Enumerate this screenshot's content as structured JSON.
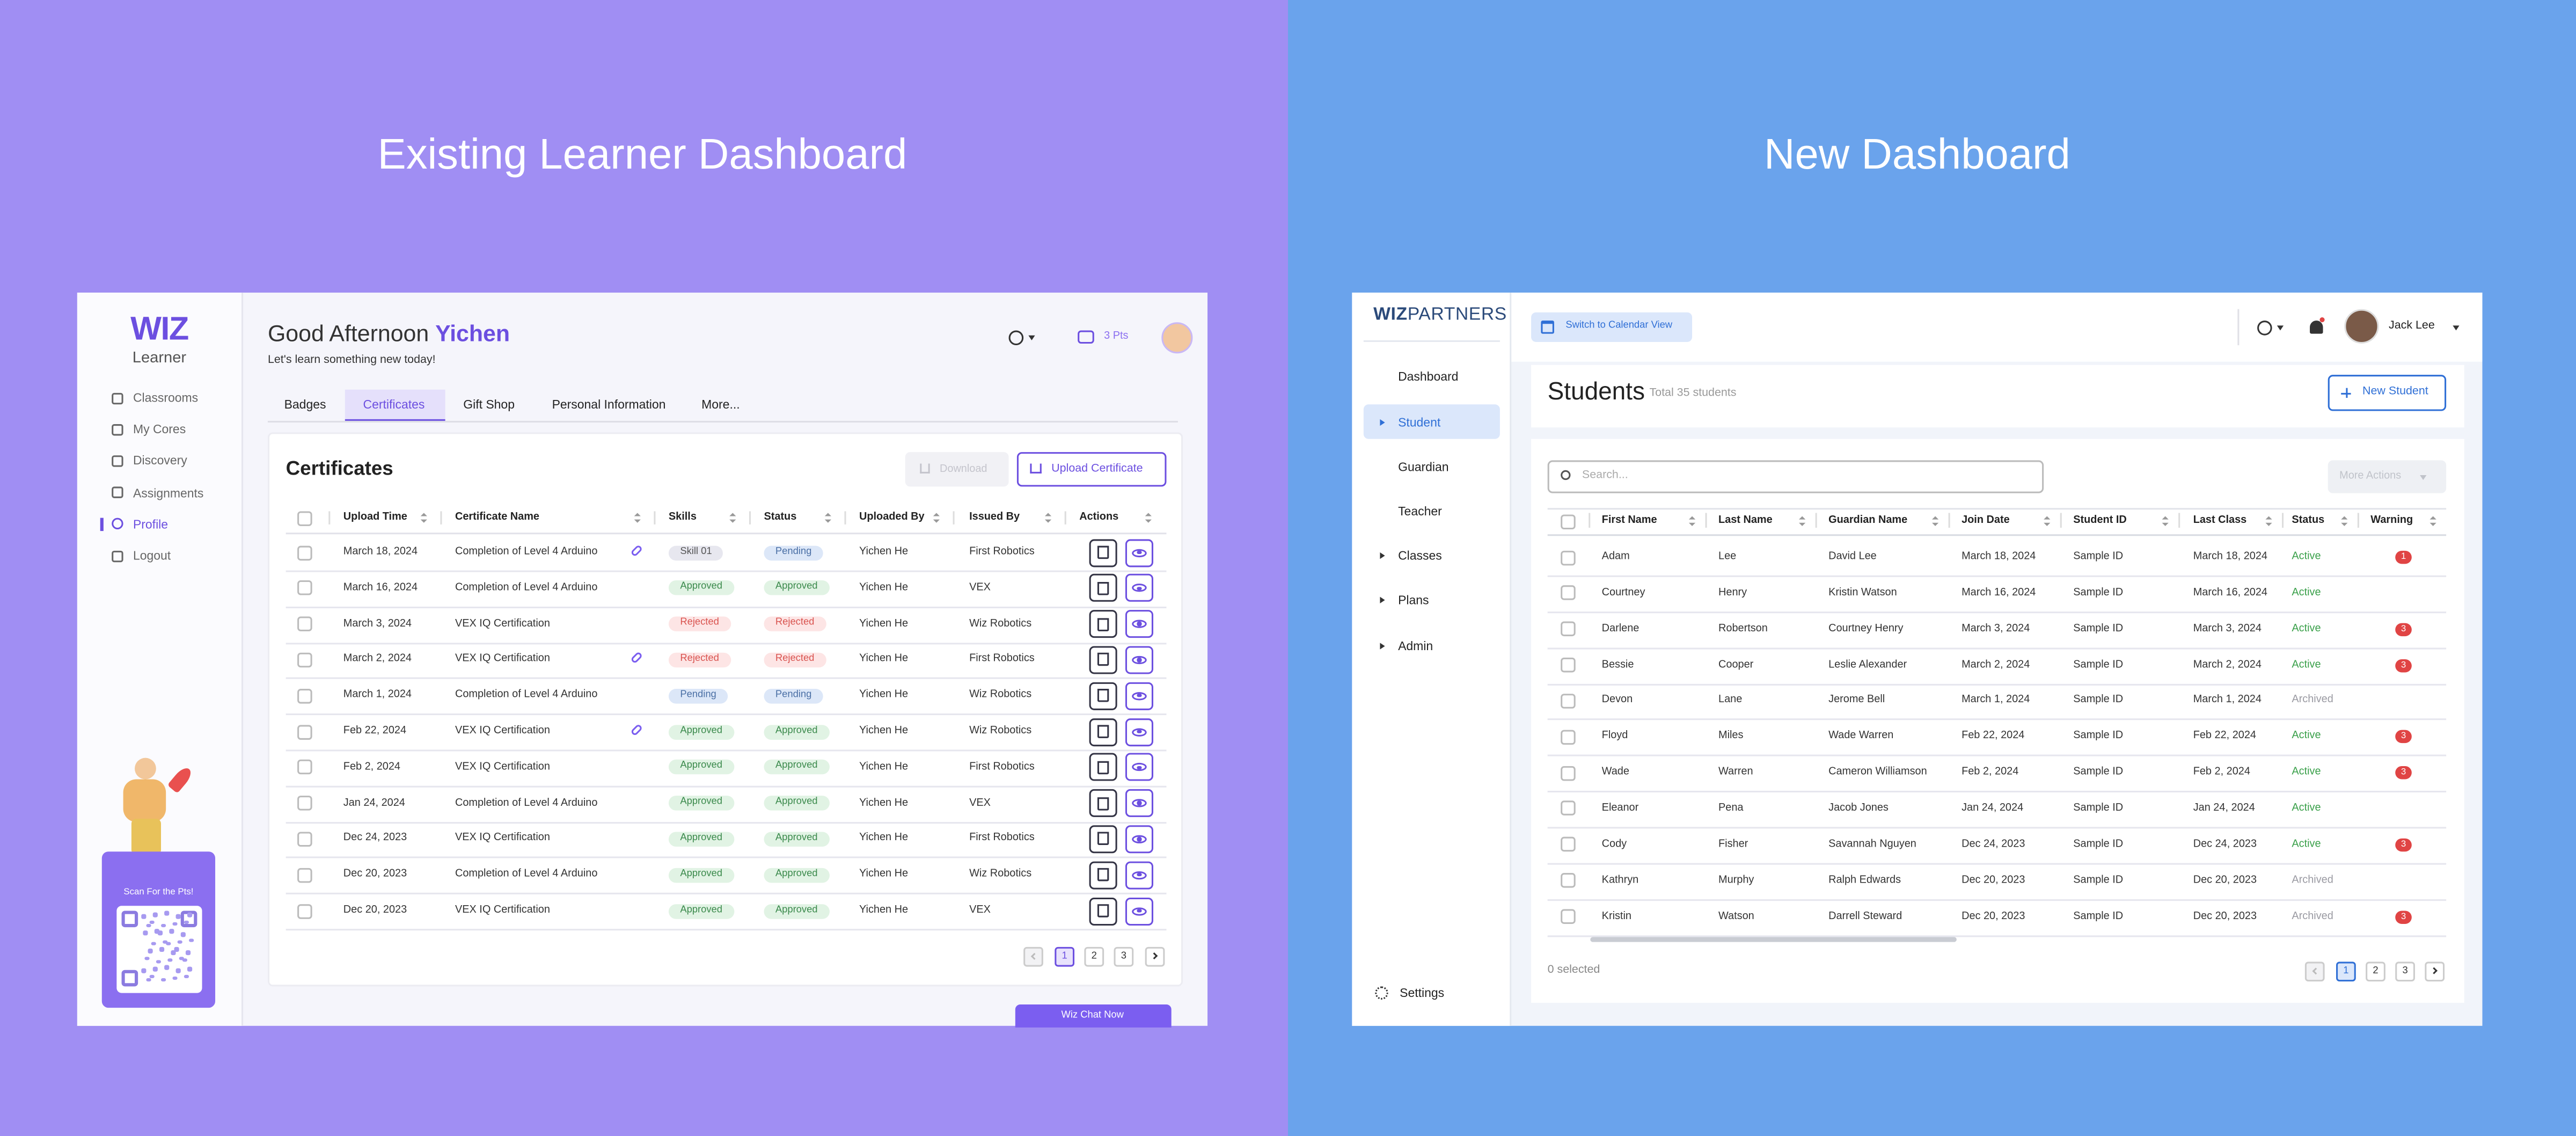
{
  "left": {
    "heading": "Existing Learner Dashboard",
    "logo": "WIZ",
    "logo_sub": "Learner",
    "nav": [
      "Classrooms",
      "My Cores",
      "Discovery",
      "Assignments",
      "Profile",
      "Logout"
    ],
    "active_nav": 4,
    "qr_caption": "Scan For the Pts!",
    "greeting": "Good Afternoon",
    "user": "Yichen",
    "subtitle": "Let's learn something new today!",
    "points": "3 Pts",
    "tabs": [
      "Badges",
      "Certificates",
      "Gift Shop",
      "Personal Information",
      "More..."
    ],
    "active_tab": 1,
    "section_title": "Certificates",
    "download": "Download",
    "upload": "Upload Certificate",
    "columns": [
      "Upload Time",
      "Certificate Name",
      "Skills",
      "Status",
      "Uploaded By",
      "Issued By",
      "Actions"
    ],
    "rows": [
      {
        "upload_time": "March 18, 2024",
        "name": "Completion of Level 4 Arduino",
        "link": true,
        "skill": "Skill 01",
        "status": "Pending",
        "uploaded_by": "Yichen He",
        "issued_by": "First Robotics"
      },
      {
        "upload_time": "March 16, 2024",
        "name": "Completion of Level 4 Arduino",
        "link": false,
        "skill": "Approved",
        "status": "Approved",
        "uploaded_by": "Yichen He",
        "issued_by": "VEX"
      },
      {
        "upload_time": "March 3, 2024",
        "name": "VEX IQ Certification",
        "link": false,
        "skill": "Rejected",
        "status": "Rejected",
        "uploaded_by": "Yichen He",
        "issued_by": "Wiz Robotics"
      },
      {
        "upload_time": "March 2, 2024",
        "name": "VEX IQ Certification",
        "link": true,
        "skill": "Rejected",
        "status": "Rejected",
        "uploaded_by": "Yichen He",
        "issued_by": "First Robotics"
      },
      {
        "upload_time": "March 1, 2024",
        "name": "Completion of Level 4 Arduino",
        "link": false,
        "skill": "Pending",
        "status": "Pending",
        "uploaded_by": "Yichen He",
        "issued_by": "Wiz Robotics"
      },
      {
        "upload_time": "Feb 22, 2024",
        "name": "VEX IQ Certification",
        "link": true,
        "skill": "Approved",
        "status": "Approved",
        "uploaded_by": "Yichen He",
        "issued_by": "Wiz Robotics"
      },
      {
        "upload_time": "Feb 2, 2024",
        "name": "VEX IQ Certification",
        "link": false,
        "skill": "Approved",
        "status": "Approved",
        "uploaded_by": "Yichen He",
        "issued_by": "First Robotics"
      },
      {
        "upload_time": "Jan 24, 2024",
        "name": "Completion of Level 4 Arduino",
        "link": false,
        "skill": "Approved",
        "status": "Approved",
        "uploaded_by": "Yichen He",
        "issued_by": "VEX"
      },
      {
        "upload_time": "Dec 24, 2023",
        "name": "VEX IQ Certification",
        "link": false,
        "skill": "Approved",
        "status": "Approved",
        "uploaded_by": "Yichen He",
        "issued_by": "First Robotics"
      },
      {
        "upload_time": "Dec 20, 2023",
        "name": "Completion of Level 4 Arduino",
        "link": false,
        "skill": "Approved",
        "status": "Approved",
        "uploaded_by": "Yichen He",
        "issued_by": "Wiz Robotics"
      },
      {
        "upload_time": "Dec 20, 2023",
        "name": "VEX IQ Certification",
        "link": false,
        "skill": "Approved",
        "status": "Approved",
        "uploaded_by": "Yichen He",
        "issued_by": "VEX"
      }
    ],
    "pages": [
      "1",
      "2",
      "3"
    ],
    "chat": "Wiz Chat Now"
  },
  "right": {
    "heading": "New Dashboard",
    "logo_bold": "WIZ",
    "logo_light": "PARTNERS",
    "nav": [
      "Dashboard",
      "Student",
      "Guardian",
      "Teacher",
      "Classes",
      "Plans",
      "Admin"
    ],
    "active_nav": 1,
    "settings": "Settings",
    "calendar": "Switch to Calendar View",
    "user": "Jack Lee",
    "page_title": "Students",
    "total": "Total 35 students",
    "new_student": "New Student",
    "search": "Search...",
    "more_actions": "More Actions",
    "columns": [
      "First Name",
      "Last Name",
      "Guardian Name",
      "Join Date",
      "Student ID",
      "Last Class",
      "Status",
      "Warning"
    ],
    "rows": [
      [
        "Adam",
        "Lee",
        "David Lee",
        "March 18, 2024",
        "Sample ID",
        "March 18, 2024",
        "Active",
        "1"
      ],
      [
        "Courtney",
        "Henry",
        "Kristin Watson",
        "March 16, 2024",
        "Sample ID",
        "March 16, 2024",
        "Active",
        null
      ],
      [
        "Darlene",
        "Robertson",
        "Courtney Henry",
        "March 3, 2024",
        "Sample ID",
        "March 3, 2024",
        "Active",
        "3"
      ],
      [
        "Bessie",
        "Cooper",
        "Leslie Alexander",
        "March 2, 2024",
        "Sample ID",
        "March 2, 2024",
        "Active",
        "3"
      ],
      [
        "Devon",
        "Lane",
        "Jerome Bell",
        "March 1, 2024",
        "Sample ID",
        "March 1, 2024",
        "Archived",
        null
      ],
      [
        "Floyd",
        "Miles",
        "Wade Warren",
        "Feb 22, 2024",
        "Sample ID",
        "Feb 22, 2024",
        "Active",
        "3"
      ],
      [
        "Wade",
        "Warren",
        "Cameron Williamson",
        "Feb 2, 2024",
        "Sample ID",
        "Feb 2, 2024",
        "Active",
        "3"
      ],
      [
        "Eleanor",
        "Pena",
        "Jacob Jones",
        "Jan 24, 2024",
        "Sample ID",
        "Jan 24, 2024",
        "Active",
        null
      ],
      [
        "Cody",
        "Fisher",
        "Savannah Nguyen",
        "Dec 24, 2023",
        "Sample ID",
        "Dec 24, 2023",
        "Active",
        "3"
      ],
      [
        "Kathryn",
        "Murphy",
        "Ralph Edwards",
        "Dec 20, 2023",
        "Sample ID",
        "Dec 20, 2023",
        "Archived",
        null
      ],
      [
        "Kristin",
        "Watson",
        "Darrell Steward",
        "Dec 20, 2023",
        "Sample ID",
        "Dec 20, 2023",
        "Archived",
        "3"
      ]
    ],
    "selected": "0 selected",
    "pages": [
      "1",
      "2",
      "3"
    ]
  }
}
